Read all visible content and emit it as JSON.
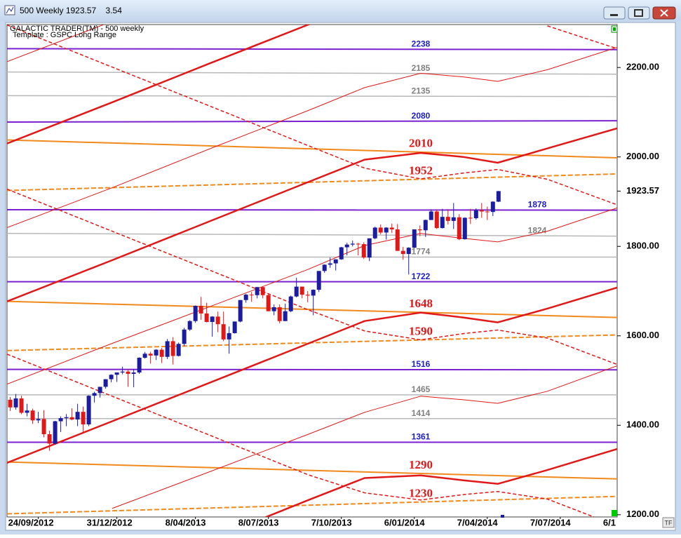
{
  "window": {
    "title": "500 Weekly 1923.57    3.54"
  },
  "chart_data": {
    "type": "candlestick",
    "title": "GALACTIC TRADER(TM) - 500 weekly",
    "subtitle": "Template : GSPC Long Range",
    "up_color": "#1c1ca0",
    "down_color": "#e01818",
    "x": [
      "2012-08-20",
      "2012-08-27",
      "2012-09-03",
      "2012-09-10",
      "2012-09-17",
      "2012-09-24",
      "2012-10-01",
      "2012-10-08",
      "2012-10-15",
      "2012-10-22",
      "2012-10-29",
      "2012-11-05",
      "2012-11-12",
      "2012-11-19",
      "2012-11-26",
      "2012-12-03",
      "2012-12-10",
      "2012-12-17",
      "2012-12-24",
      "2012-12-31",
      "2013-01-07",
      "2013-01-14",
      "2013-01-21",
      "2013-01-28",
      "2013-02-04",
      "2013-02-11",
      "2013-02-18",
      "2013-02-25",
      "2013-03-04",
      "2013-03-11",
      "2013-03-18",
      "2013-03-25",
      "2013-04-01",
      "2013-04-08",
      "2013-04-15",
      "2013-04-22",
      "2013-04-29",
      "2013-05-06",
      "2013-05-13",
      "2013-05-20",
      "2013-05-27",
      "2013-06-03",
      "2013-06-10",
      "2013-06-17",
      "2013-06-24",
      "2013-07-01",
      "2013-07-08",
      "2013-07-15",
      "2013-07-22",
      "2013-07-29",
      "2013-08-05",
      "2013-08-12",
      "2013-08-19",
      "2013-08-26",
      "2013-09-02",
      "2013-09-09",
      "2013-09-16",
      "2013-09-23",
      "2013-09-30",
      "2013-10-07",
      "2013-10-14",
      "2013-10-21",
      "2013-10-28",
      "2013-11-04",
      "2013-11-11",
      "2013-11-18",
      "2013-11-25",
      "2013-12-02",
      "2013-12-09",
      "2013-12-16",
      "2013-12-23",
      "2013-12-30",
      "2014-01-06",
      "2014-01-13",
      "2014-01-20",
      "2014-01-27",
      "2014-02-03",
      "2014-02-10",
      "2014-02-17",
      "2014-02-24",
      "2014-03-03",
      "2014-03-10",
      "2014-03-17",
      "2014-03-24",
      "2014-03-31",
      "2014-04-07",
      "2014-04-14",
      "2014-04-21"
    ],
    "open": [
      1457,
      1440,
      1460,
      1428,
      1433,
      1411,
      1414,
      1380,
      1359,
      1409,
      1416,
      1418,
      1413,
      1430,
      1402,
      1466,
      1472,
      1486,
      1503,
      1513,
      1518,
      1520,
      1515,
      1518,
      1551,
      1560,
      1556,
      1569,
      1553,
      1588,
      1555,
      1582,
      1614,
      1633,
      1667,
      1650,
      1631,
      1643,
      1626,
      1592,
      1606,
      1632,
      1680,
      1692,
      1691,
      1709,
      1691,
      1655,
      1664,
      1633,
      1655,
      1688,
      1710,
      1692,
      1690,
      1703,
      1745,
      1759,
      1762,
      1771,
      1798,
      1804,
      1806,
      1805,
      1775,
      1818,
      1842,
      1831,
      1842,
      1838,
      1790,
      1783,
      1797,
      1838,
      1836,
      1859,
      1878,
      1841,
      1866,
      1857,
      1865,
      1816,
      1864,
      1863,
      1881,
      1878,
      1877,
      1900
    ],
    "high": [
      1463,
      1470,
      1466,
      1448,
      1437,
      1430,
      1434,
      1388,
      1410,
      1420,
      1425,
      1438,
      1448,
      1442,
      1467,
      1475,
      1486,
      1503,
      1514,
      1518,
      1531,
      1525,
      1525,
      1552,
      1564,
      1564,
      1570,
      1573,
      1593,
      1597,
      1585,
      1618,
      1635,
      1668,
      1687,
      1674,
      1644,
      1654,
      1654,
      1621,
      1632,
      1680,
      1694,
      1698,
      1709,
      1709,
      1694,
      1670,
      1670,
      1672,
      1690,
      1730,
      1710,
      1700,
      1704,
      1745,
      1760,
      1775,
      1771,
      1799,
      1808,
      1813,
      1808,
      1809,
      1818,
      1844,
      1849,
      1843,
      1851,
      1850,
      1799,
      1798,
      1838,
      1847,
      1860,
      1883,
      1883,
      1884,
      1883,
      1897,
      1872,
      1865,
      1884,
      1885,
      1897,
      1889,
      1901,
      1924
    ],
    "low": [
      1432,
      1435,
      1425,
      1420,
      1403,
      1405,
      1373,
      1343,
      1357,
      1385,
      1398,
      1411,
      1398,
      1385,
      1398,
      1451,
      1462,
      1482,
      1496,
      1497,
      1514,
      1486,
      1485,
      1515,
      1549,
      1538,
      1546,
      1539,
      1548,
      1536,
      1554,
      1577,
      1611,
      1629,
      1636,
      1630,
      1598,
      1608,
      1588,
      1560,
      1605,
      1630,
      1674,
      1676,
      1684,
      1684,
      1655,
      1646,
      1628,
      1633,
      1653,
      1686,
      1684,
      1675,
      1646,
      1698,
      1741,
      1752,
      1746,
      1770,
      1780,
      1800,
      1780,
      1772,
      1767,
      1816,
      1827,
      1815,
      1830,
      1790,
      1770,
      1737,
      1796,
      1823,
      1821,
      1859,
      1839,
      1840,
      1849,
      1839,
      1814,
      1815,
      1850,
      1860,
      1864,
      1859,
      1868,
      1899
    ],
    "close": [
      1440,
      1460,
      1428,
      1433,
      1411,
      1414,
      1380,
      1359,
      1409,
      1416,
      1418,
      1413,
      1430,
      1402,
      1466,
      1472,
      1486,
      1503,
      1513,
      1518,
      1520,
      1515,
      1518,
      1551,
      1560,
      1556,
      1569,
      1553,
      1588,
      1555,
      1582,
      1614,
      1633,
      1667,
      1650,
      1631,
      1643,
      1626,
      1592,
      1606,
      1632,
      1680,
      1692,
      1691,
      1709,
      1691,
      1655,
      1664,
      1633,
      1655,
      1688,
      1710,
      1692,
      1690,
      1703,
      1745,
      1759,
      1762,
      1771,
      1798,
      1804,
      1806,
      1805,
      1775,
      1818,
      1842,
      1831,
      1842,
      1838,
      1790,
      1783,
      1797,
      1838,
      1836,
      1859,
      1878,
      1841,
      1866,
      1857,
      1865,
      1816,
      1864,
      1863,
      1881,
      1878,
      1877,
      1900,
      1923.57
    ],
    "xlim": [
      "2012-08-16",
      "2014-09-16"
    ],
    "xticks": [
      {
        "value": "2012-09-24",
        "label": "24/09/2012"
      },
      {
        "value": "2012-12-31",
        "label": "31/12/2012"
      },
      {
        "value": "2013-04-08",
        "label": "8/04/2013"
      },
      {
        "value": "2013-07-08",
        "label": "8/07/2013"
      },
      {
        "value": "2013-10-07",
        "label": "7/10/2013"
      },
      {
        "value": "2014-01-06",
        "label": "6/01/2014"
      },
      {
        "value": "2014-04-07",
        "label": "7/04/2014"
      },
      {
        "value": "2014-07-07",
        "label": "7/07/2014"
      },
      {
        "value": "2014-10-06",
        "label": "6/1"
      }
    ],
    "ylim": [
      1195,
      2296
    ],
    "yticks": [
      {
        "value": 1200,
        "label": "1200.00"
      },
      {
        "value": 1400,
        "label": "1400.00"
      },
      {
        "value": 1600,
        "label": "1600.00"
      },
      {
        "value": 1800,
        "label": "1800.00"
      },
      {
        "value": 1923.57,
        "label": "1923.57"
      },
      {
        "value": 2000,
        "label": "2000.00"
      },
      {
        "value": 2200,
        "label": "2200.00"
      }
    ],
    "levels": [
      {
        "level": 2238,
        "start": 2242,
        "end": 2240,
        "color": "#7a22d0",
        "label_color": "#1c1cd0",
        "width": 2,
        "dashed": false
      },
      {
        "level": 2185,
        "start": 2190,
        "end": 2185,
        "color": "#b8b8b8",
        "label_color": "#808080",
        "width": 1.5,
        "dashed": false
      },
      {
        "level": 2135,
        "start": 2137,
        "end": 2135,
        "color": "#b8b8b8",
        "label_color": "#808080",
        "width": 1.5,
        "dashed": false
      },
      {
        "level": 2080,
        "start": 2078,
        "end": 2081,
        "color": "#7a22d0",
        "label_color": "#1c1cd0",
        "width": 2,
        "dashed": false
      },
      {
        "level": 2010,
        "start": 2038,
        "end": 1998,
        "color": "#f08a1c",
        "label_color": "#e01818",
        "width": 2,
        "dashed": false
      },
      {
        "level": 1952,
        "start": 1925,
        "end": 1962,
        "color": "#f08a1c",
        "label_color": "#e01818",
        "width": 2,
        "dashed": true
      },
      {
        "level": 1878,
        "start": 1882,
        "end": 1881,
        "color": "#7a22d0",
        "label_color": "#1c1cd0",
        "width": 2,
        "dashed": false
      },
      {
        "level": 1824,
        "start": 1829,
        "end": 1823,
        "color": "#b8b8b8",
        "label_color": "#808080",
        "width": 1.5,
        "dashed": false
      },
      {
        "level": 1774,
        "start": 1776,
        "end": 1776,
        "color": "#b8b8b8",
        "label_color": "#808080",
        "width": 1.5,
        "dashed": false
      },
      {
        "level": 1722,
        "start": 1721,
        "end": 1721,
        "color": "#7a22d0",
        "label_color": "#1c1cd0",
        "width": 2,
        "dashed": false
      },
      {
        "level": 1648,
        "start": 1677,
        "end": 1641,
        "color": "#f08a1c",
        "label_color": "#e01818",
        "width": 2,
        "dashed": false
      },
      {
        "level": 1590,
        "start": 1567,
        "end": 1602,
        "color": "#f08a1c",
        "label_color": "#e01818",
        "width": 2,
        "dashed": true
      },
      {
        "level": 1516,
        "start": 1525,
        "end": 1524,
        "color": "#7a22d0",
        "label_color": "#1c1cd0",
        "width": 2,
        "dashed": false
      },
      {
        "level": 1465,
        "start": 1468,
        "end": 1468,
        "color": "#b8b8b8",
        "label_color": "#808080",
        "width": 1.5,
        "dashed": false
      },
      {
        "level": 1414,
        "start": 1415,
        "end": 1415,
        "color": "#b8b8b8",
        "label_color": "#808080",
        "width": 1.5,
        "dashed": false
      },
      {
        "level": 1361,
        "start": 1362,
        "end": 1362,
        "color": "#7a22d0",
        "label_color": "#1c1cd0",
        "width": 2,
        "dashed": false
      },
      {
        "level": 1290,
        "start": 1318,
        "end": 1280,
        "color": "#f08a1c",
        "label_color": "#e01818",
        "width": 2,
        "dashed": false
      },
      {
        "level": 1230,
        "start": 1202,
        "end": 1241,
        "color": "#f08a1c",
        "label_color": "#e01818",
        "width": 2,
        "dashed": true
      }
    ],
    "curves": [
      {
        "color": "#e01818",
        "width": 2.5,
        "dashed": false,
        "x": [
          "2012-08-16",
          "2012-12-25",
          "2013-04-27",
          "2013-08-27",
          "2013-11-05"
        ],
        "values": [
          2030,
          2122,
          2210,
          2296,
          2345
        ]
      },
      {
        "color": "#e01818",
        "width": 2.5,
        "dashed": false,
        "x": [
          "2012-08-16",
          "2012-12-25",
          "2013-04-27",
          "2013-08-27",
          "2013-11-05",
          "2014-01-14",
          "2014-03-08",
          "2014-04-20",
          "2014-06-21",
          "2014-09-16"
        ],
        "values": [
          1677,
          1769,
          1857,
          1944,
          1994,
          2009,
          2000,
          1987,
          2019,
          2064
        ]
      },
      {
        "color": "#e01818",
        "width": 2.5,
        "dashed": false,
        "x": [
          "2012-08-16",
          "2012-12-25",
          "2013-04-27",
          "2013-08-27",
          "2013-11-05",
          "2014-01-14",
          "2014-03-08",
          "2014-04-20",
          "2014-06-21",
          "2014-09-16"
        ],
        "values": [
          1316,
          1409,
          1496,
          1583,
          1633,
          1652,
          1641,
          1630,
          1661,
          1708
        ]
      },
      {
        "color": "#e01818",
        "width": 2.5,
        "dashed": false,
        "x": [
          "2013-04-27",
          "2013-08-27",
          "2013-11-05",
          "2014-01-14",
          "2014-03-08",
          "2014-04-20",
          "2014-06-21",
          "2014-09-16"
        ],
        "values": [
          1145,
          1233,
          1282,
          1288,
          1277,
          1269,
          1300,
          1347
        ]
      },
      {
        "color": "#e01818",
        "width": 1.5,
        "dashed": true,
        "x": [
          "2012-08-16",
          "2012-12-25",
          "2013-04-27",
          "2013-08-27",
          "2013-11-05",
          "2014-01-14",
          "2014-03-08",
          "2014-04-20",
          "2014-06-21",
          "2014-09-16"
        ],
        "values": [
          2295,
          2201,
          2113,
          2025,
          1975,
          1951,
          1964,
          1972,
          1950,
          1893
        ]
      },
      {
        "color": "#e01818",
        "width": 1.5,
        "dashed": true,
        "x": [
          "2012-08-16",
          "2012-12-25",
          "2013-04-27",
          "2013-08-27",
          "2013-11-05",
          "2014-01-14",
          "2014-03-08",
          "2014-04-20",
          "2014-06-21",
          "2014-09-16"
        ],
        "values": [
          1928,
          1834,
          1746,
          1658,
          1611,
          1591,
          1605,
          1613,
          1595,
          1536
        ]
      },
      {
        "color": "#e01818",
        "width": 1.5,
        "dashed": true,
        "x": [
          "2012-08-16",
          "2012-12-25",
          "2013-04-27",
          "2013-08-27",
          "2013-11-05",
          "2014-01-14",
          "2014-03-08",
          "2014-04-20",
          "2014-06-21",
          "2014-09-16"
        ],
        "values": [
          1559,
          1465,
          1377,
          1289,
          1249,
          1233,
          1245,
          1252,
          1235,
          1175
        ]
      },
      {
        "color": "#e01818",
        "width": 1.5,
        "dashed": true,
        "x": [
          "2014-06-21",
          "2014-09-16"
        ],
        "values": [
          2293,
          2242
        ]
      },
      {
        "color": "#e01818",
        "width": 1,
        "dashed": false,
        "x": [
          "2012-08-16",
          "2012-12-25"
        ],
        "values": [
          2213,
          2303
        ]
      },
      {
        "color": "#e01818",
        "width": 1,
        "dashed": false,
        "x": [
          "2012-08-16",
          "2012-12-25",
          "2013-04-27",
          "2013-08-27",
          "2013-11-05",
          "2014-01-14",
          "2014-03-08",
          "2014-04-20",
          "2014-06-21",
          "2014-09-16"
        ],
        "values": [
          1842,
          1931,
          2019,
          2104,
          2155,
          2187,
          2179,
          2169,
          2195,
          2245
        ]
      },
      {
        "color": "#e01818",
        "width": 1,
        "dashed": false,
        "x": [
          "2012-08-16",
          "2012-12-25",
          "2013-04-27",
          "2013-08-27",
          "2013-11-05",
          "2014-01-14",
          "2014-03-08",
          "2014-04-20",
          "2014-06-21",
          "2014-09-16"
        ],
        "values": [
          1492,
          1583,
          1666,
          1749,
          1802,
          1829,
          1818,
          1810,
          1834,
          1886
        ]
      },
      {
        "color": "#e01818",
        "width": 1,
        "dashed": false,
        "x": [
          "2012-12-25",
          "2013-04-27",
          "2013-08-27",
          "2013-11-05",
          "2014-01-14",
          "2014-03-08",
          "2014-04-20",
          "2014-06-21",
          "2014-09-16"
        ],
        "values": [
          1214,
          1297,
          1380,
          1429,
          1465,
          1457,
          1449,
          1476,
          1533
        ]
      }
    ]
  },
  "corner_label": "TF"
}
